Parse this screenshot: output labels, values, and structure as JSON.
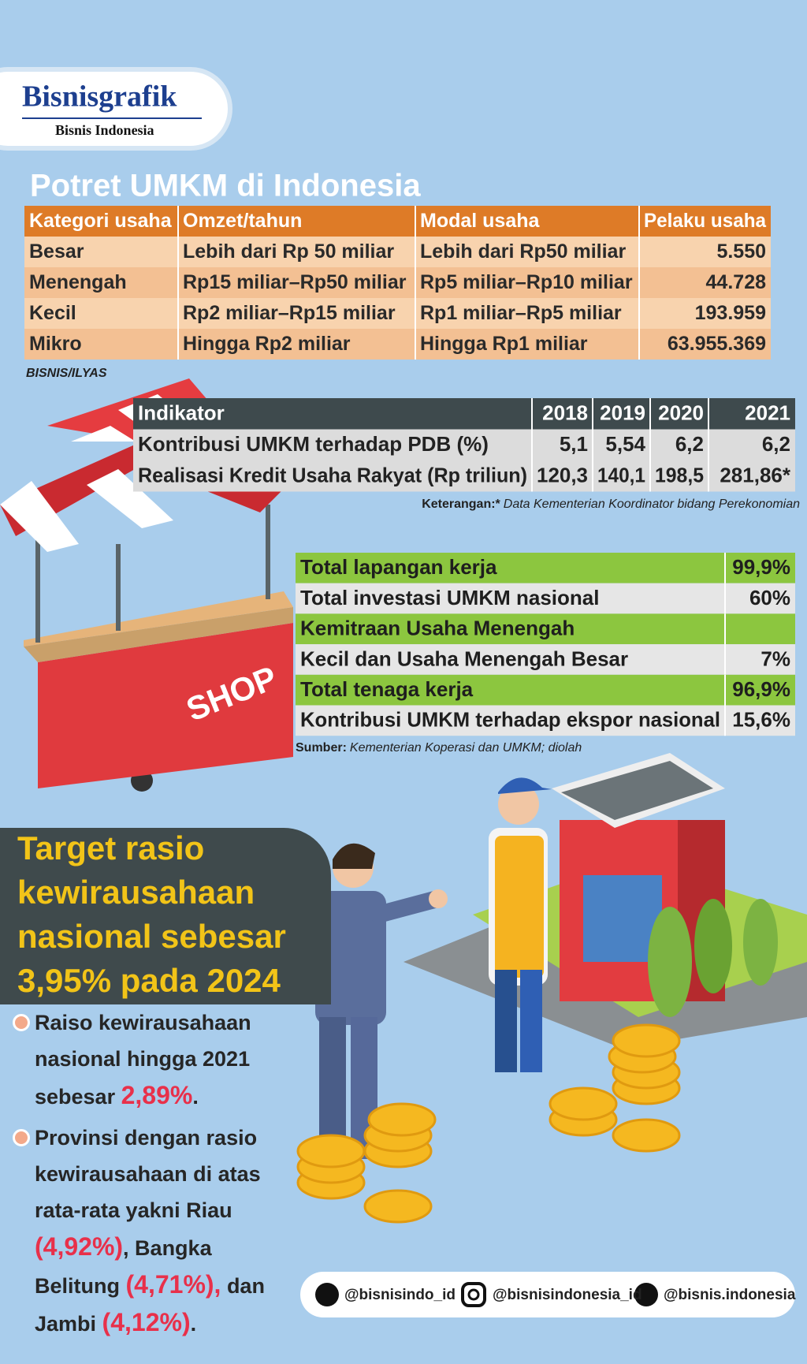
{
  "brand": {
    "name": "Bisnisgrafik",
    "publisher": "Bisnis Indonesia"
  },
  "umkm_table": {
    "title": "Potret UMKM di Indonesia",
    "header": [
      "Kategori usaha",
      "Omzet/tahun",
      "Modal usaha",
      "Pelaku usaha"
    ],
    "rows": [
      [
        "Besar",
        "Lebih dari Rp 50 miliar",
        "Lebih dari Rp50 miliar",
        "5.550"
      ],
      [
        "Menengah",
        "Rp15 miliar–Rp50 miliar",
        "Rp5 miliar–Rp10 miliar",
        "44.728"
      ],
      [
        "Kecil",
        "Rp2 miliar–Rp15 miliar",
        "Rp1 miliar–Rp5 miliar",
        "193.959"
      ],
      [
        "Mikro",
        "Hingga Rp2 miliar",
        "Hingga Rp1 miliar",
        "63.955.369"
      ]
    ],
    "credit": "BISNIS/ILYAS"
  },
  "indicator_table": {
    "header": [
      "Indikator",
      "2018",
      "2019",
      "2020",
      "2021"
    ],
    "rows": [
      [
        "Kontribusi UMKM terhadap  PDB (%)",
        "5,1",
        "5,54",
        "6,2",
        "6,2"
      ],
      [
        "Realisasi Kredit Usaha Rakyat (Rp triliun)",
        "120,3",
        "140,1",
        "198,5",
        "281,86*"
      ]
    ],
    "note": {
      "label": "Keterangan:*",
      "text": "Data Kementerian Koordinator bidang Perekonomian"
    }
  },
  "share_table": {
    "rows": [
      {
        "label": "Total lapangan kerja",
        "value": "99,9%"
      },
      {
        "label": "Total investasi UMKM nasional",
        "value": "60%"
      },
      {
        "label": "Kemitraan Usaha Menengah"
      },
      {
        "label": "Kecil dan Usaha Menengah Besar",
        "value": "7%"
      },
      {
        "label": "Total tenaga kerja",
        "value": "96,9%"
      },
      {
        "label": "Kontribusi UMKM terhadap ekspor nasional",
        "value": "15,6%"
      }
    ],
    "source": {
      "label": "Sumber:",
      "text": "Kementerian Koperasi dan UMKM; diolah"
    }
  },
  "shop_sign": "SHOP",
  "target": {
    "heading": [
      "Target rasio",
      "kewirausahaan",
      "nasional sebesar",
      "3,95% pada 2024"
    ],
    "bullets": [
      [
        {
          "text": "Raiso kewirausahaan nasional hingga 2021 sebesar "
        },
        {
          "text": "2,89%",
          "color": "#e8304a"
        },
        {
          "text": "."
        }
      ],
      [
        {
          "text": "Provinsi dengan rasio kewirausahaan di atas rata-rata yakni Riau "
        },
        {
          "text": "(4,92%)",
          "color": "#e8304a"
        },
        {
          "text": ", Bangka Belitung "
        },
        {
          "text": "(4,71%),",
          "color": "#e8304a"
        },
        {
          "text": " dan Jambi "
        },
        {
          "text": "(4,12%)",
          "color": "#e8304a"
        },
        {
          "text": "."
        }
      ]
    ]
  },
  "social": [
    "@bisnisindo_id",
    "@bisnisindonesia_id",
    "@bisnis.indonesia"
  ]
}
